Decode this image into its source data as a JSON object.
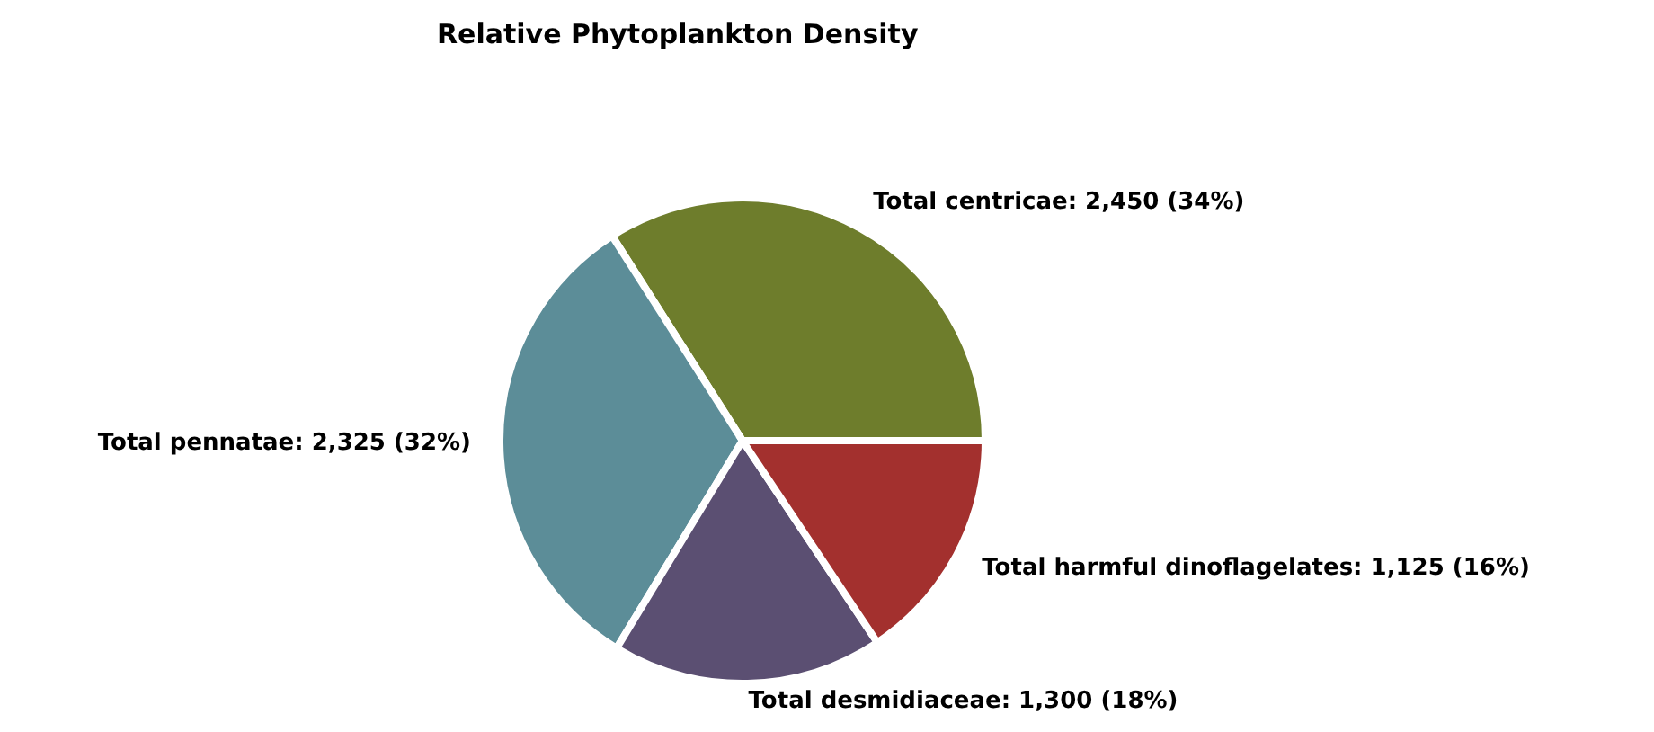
{
  "chart_data": {
    "type": "pie",
    "title": "Relative Phytoplankton Density",
    "categories": [
      "Total centricae",
      "Total pennatae",
      "Total desmidiaceae",
      "Total harmful dinoflagelates"
    ],
    "values": [
      2450,
      2325,
      1300,
      1125
    ],
    "value_labels": [
      "2,450 (34%)",
      "2,325 (32%)",
      "1,300 (18%)",
      "1,125 (16%)"
    ],
    "colors": [
      "#6e7d2c",
      "#5c8d98",
      "#5b4f72",
      "#a3302e"
    ],
    "legend": false
  }
}
